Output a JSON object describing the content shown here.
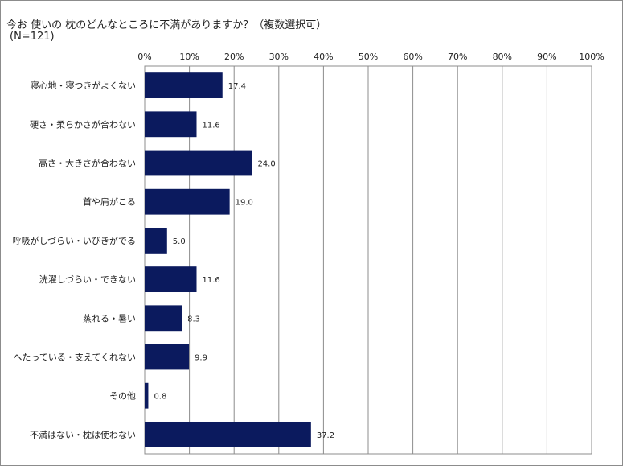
{
  "chart_data": {
    "type": "bar",
    "orientation": "horizontal",
    "title": "今お 使いの 枕のどんなところに不満がありますか？（複数選択可）",
    "subtitle": "(N=121)",
    "xlim": [
      0,
      100
    ],
    "x_ticks": [
      "0%",
      "10%",
      "20%",
      "30%",
      "40%",
      "50%",
      "60%",
      "70%",
      "80%",
      "90%",
      "100%"
    ],
    "categories": [
      "寝心地・寝つきがよくない",
      "硬さ・柔らかさが合わない",
      "高さ・大きさが合わない",
      "首や肩がこる",
      "呼吸がしづらい・いびきがでる",
      "洗濯しづらい・できない",
      "蒸れる・暑い",
      "へたっている・支えてくれない",
      "その他",
      "不満はない・枕は使わない"
    ],
    "values": [
      17.4,
      11.6,
      24.0,
      19.0,
      5.0,
      11.6,
      8.3,
      9.9,
      0.8,
      37.2
    ],
    "value_labels": [
      "17.4",
      "11.6",
      "24.0",
      "19.0",
      "5.0",
      "11.6",
      "8.3",
      "9.9",
      "0.8",
      "37.2"
    ],
    "bar_color": "#0b1a5e",
    "grid": true
  }
}
